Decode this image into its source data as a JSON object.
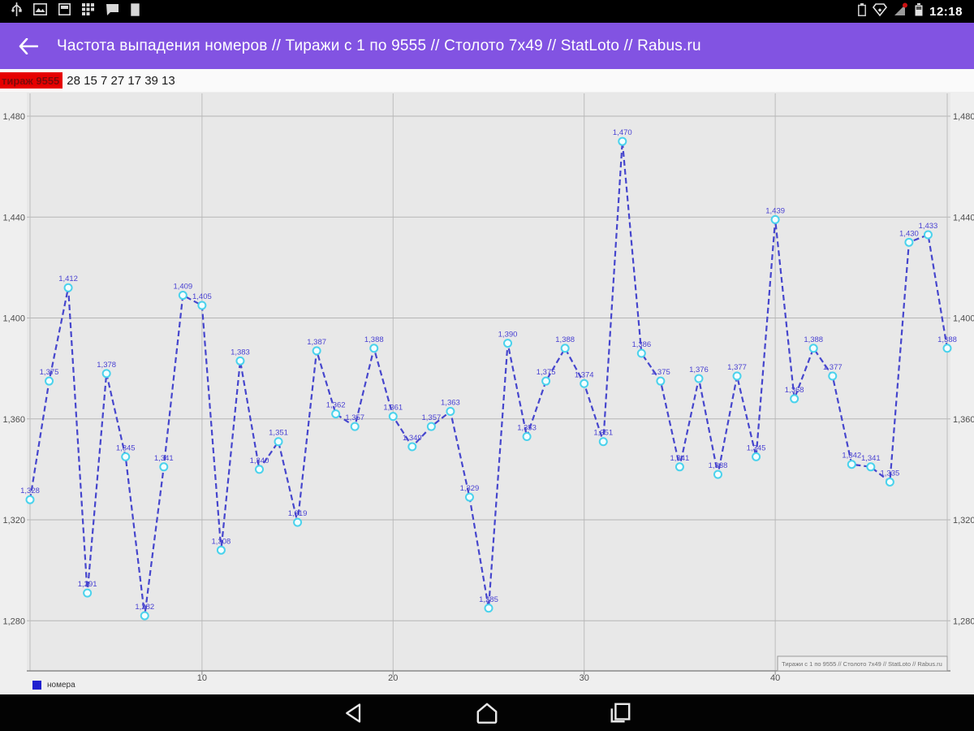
{
  "status_bar": {
    "time": "12:18",
    "left_icons": [
      "usb-debug-icon",
      "image-icon",
      "window-icon",
      "grid-icon",
      "chat-icon",
      "storage-icon"
    ],
    "right_icons": [
      "battery-outline-icon",
      "diamond-icon",
      "signal-icon",
      "battery-icon"
    ]
  },
  "app_bar": {
    "title": "Частота выпадения номеров // Тиражи с 1 по 9555 // Столото 7x49 // StatLoto // Rabus.ru"
  },
  "draw_info": {
    "badge_label": "тираж 9555",
    "numbers": "28 15 7 27 17 39 13"
  },
  "chart_data": {
    "type": "line",
    "series": [
      {
        "name": "номера",
        "values": [
          1328,
          1375,
          1412,
          1291,
          1378,
          1345,
          1282,
          1341,
          1409,
          1405,
          1308,
          1383,
          1340,
          1351,
          1319,
          1387,
          1362,
          1357,
          1388,
          1361,
          1349,
          1357,
          1363,
          1329,
          1285,
          1390,
          1353,
          1375,
          1388,
          1374,
          1351,
          1470,
          1386,
          1375,
          1341,
          1376,
          1338,
          1377,
          1345,
          1439,
          1368,
          1388,
          1377,
          1342,
          1341,
          1335,
          1430,
          1433,
          1388
        ]
      }
    ],
    "x_range": [
      1,
      49
    ],
    "x_ticks": [
      10,
      20,
      30,
      40
    ],
    "ylim": [
      1280,
      1480
    ],
    "y_tick_step": 40,
    "grid": true,
    "legend_position": "bottom-left",
    "footer_note": "Тиражи с 1 по 9555 // Столото 7x49 // StatLoto // Rabus.ru"
  },
  "colors": {
    "app_bar_bg": "#8253e2",
    "badge_bg": "#e60000",
    "badge_text": "#7d0b0b",
    "line": "#4646cd",
    "point_ring": "#4ad2ec",
    "point_fill": "#f2feff",
    "point_label": "#4a42d2",
    "grid_h": "#b5b5b5",
    "grid_v": "#bdbdbd",
    "axis_text": "#4f4f4f",
    "plot_bg": "#e8e8e8",
    "axis_line": "#8a8a8a",
    "legend_swatch": "#2020cf",
    "footer_text": "#6f6f6f"
  }
}
